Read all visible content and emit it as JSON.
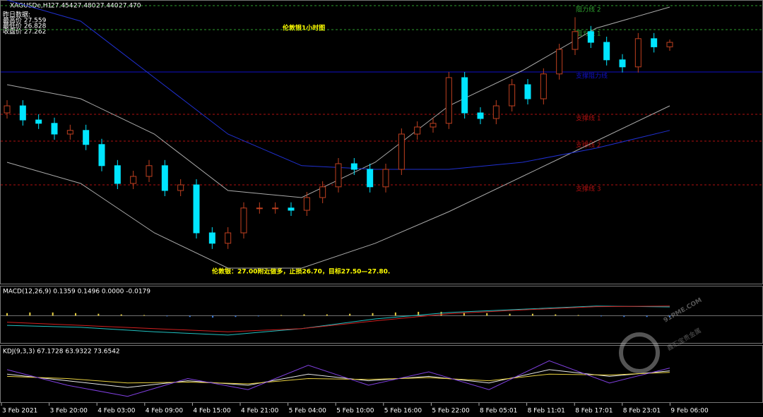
{
  "header": {
    "symbol": "XAGUSDe,H1",
    "ohlc": [
      "27.454",
      "27.480",
      "27.440",
      "27.470"
    ]
  },
  "info": [
    "昨日数据:",
    "最高价 27.559",
    "最低价 26.828",
    "收盘价 27.262"
  ],
  "title": "伦敦银1小时图",
  "annotation": "伦敦银：27.00附近做多，止损26.70，目标27.50—27.80.",
  "main": {
    "ylim": [
      26.62,
      27.62
    ],
    "open": [
      27.22,
      27.245,
      27.195,
      27.183,
      27.145,
      27.158,
      27.108,
      27.033,
      26.97,
      26.995,
      27.033,
      26.945,
      26.965,
      26.795,
      26.758,
      26.795,
      26.883,
      26.883,
      26.883,
      26.875,
      26.92,
      26.958,
      27.04,
      27.02,
      26.958,
      27.02,
      27.145,
      27.17,
      27.183,
      27.345,
      27.22,
      27.2,
      27.245,
      27.32,
      27.27,
      27.358,
      27.445,
      27.508,
      27.47,
      27.408,
      27.383,
      27.483,
      27.454
    ],
    "high": [
      27.265,
      27.265,
      27.215,
      27.203,
      27.178,
      27.178,
      27.128,
      27.053,
      27.015,
      27.053,
      27.053,
      26.985,
      26.985,
      26.815,
      26.815,
      26.903,
      26.903,
      26.903,
      26.903,
      26.94,
      26.978,
      27.06,
      27.06,
      27.04,
      27.04,
      27.165,
      27.19,
      27.203,
      27.365,
      27.365,
      27.24,
      27.265,
      27.34,
      27.34,
      27.378,
      27.465,
      27.559,
      27.528,
      27.49,
      27.428,
      27.503,
      27.503,
      27.48
    ],
    "low": [
      27.2,
      27.175,
      27.163,
      27.125,
      27.125,
      27.088,
      27.013,
      26.95,
      26.95,
      26.975,
      26.925,
      26.925,
      26.775,
      26.738,
      26.738,
      26.775,
      26.863,
      26.863,
      26.855,
      26.855,
      26.9,
      26.938,
      27.0,
      26.938,
      26.938,
      27.0,
      27.125,
      27.15,
      27.163,
      27.2,
      27.18,
      27.18,
      27.225,
      27.25,
      27.25,
      27.338,
      27.425,
      27.45,
      27.388,
      27.363,
      27.363,
      27.434,
      27.44
    ],
    "close": [
      27.245,
      27.195,
      27.183,
      27.145,
      27.158,
      27.108,
      27.033,
      26.97,
      26.995,
      27.033,
      26.945,
      26.965,
      26.795,
      26.758,
      26.795,
      26.883,
      26.883,
      26.883,
      26.875,
      26.92,
      26.958,
      27.04,
      27.02,
      26.958,
      27.02,
      27.145,
      27.17,
      27.183,
      27.345,
      27.22,
      27.2,
      27.245,
      27.32,
      27.27,
      27.358,
      27.445,
      27.508,
      27.47,
      27.408,
      27.383,
      27.483,
      27.454,
      27.47
    ],
    "band_upper": [
      27.32,
      27.27,
      27.145,
      26.945,
      26.92,
      27.045,
      27.245,
      27.37,
      27.52,
      27.595
    ],
    "band_lower": [
      27.045,
      26.97,
      26.795,
      26.67,
      26.67,
      26.758,
      26.87,
      26.995,
      27.12,
      27.245
    ],
    "ma_long": [
      27.62,
      27.545,
      27.345,
      27.145,
      27.033,
      27.02,
      27.02,
      27.045,
      27.095,
      27.158
    ],
    "levels": [
      {
        "label": "阻力线 2",
        "value": 27.6,
        "color": "#2e9e2e"
      },
      {
        "label": "阻力线 1",
        "value": 27.515,
        "color": "#2e9e2e"
      },
      {
        "label": "支撑阻力线",
        "value": 27.365,
        "color": "#1010c8"
      },
      {
        "label": "支撑线 1",
        "value": 27.215,
        "color": "#b01010"
      },
      {
        "label": "支撑线 2",
        "value": 27.12,
        "color": "#b01010"
      },
      {
        "label": "支撑线 3",
        "value": 26.965,
        "color": "#b01010"
      }
    ]
  },
  "macd": {
    "label": "MACD(12,26,9) 0.1359 0.1496 0.0000 -0.0179",
    "ylim": [
      -0.4,
      0.3
    ],
    "hist": [
      0.04,
      0.05,
      0.05,
      0.04,
      0.03,
      0.02,
      0.01,
      -0.01,
      -0.02,
      -0.03,
      -0.02,
      -0.01,
      0.01,
      0.02,
      0.02,
      0.03,
      0.04,
      0.05,
      0.06,
      0.06,
      0.05,
      0.04,
      0.03,
      0.03,
      0.02,
      0.01,
      -0.01,
      -0.02,
      -0.02,
      -0.02
    ],
    "macd": [
      -0.15,
      -0.18,
      -0.25,
      -0.3,
      -0.2,
      -0.05,
      0.05,
      0.1,
      0.15,
      0.136
    ],
    "signal": [
      -0.1,
      -0.15,
      -0.2,
      -0.25,
      -0.2,
      -0.08,
      0.03,
      0.09,
      0.14,
      0.15
    ]
  },
  "kdj": {
    "label": "KDJ(9,3,3) 67.1728 63.9322 73.6542",
    "ylim": [
      0,
      100
    ],
    "k": [
      60,
      45,
      30,
      45,
      35,
      60,
      45,
      55,
      40,
      70,
      55,
      67.17
    ],
    "d": [
      55,
      50,
      40,
      42,
      38,
      50,
      48,
      52,
      45,
      60,
      58,
      63.93
    ],
    "j": [
      70,
      35,
      10,
      50,
      25,
      80,
      35,
      65,
      25,
      90,
      40,
      73.65
    ]
  },
  "x_axis": {
    "labels": [
      "3 Feb 2021",
      "3 Feb 20:00",
      "4 Feb 03:00",
      "4 Feb 09:00",
      "4 Feb 15:00",
      "4 Feb 21:00",
      "5 Feb 04:00",
      "5 Feb 10:00",
      "5 Feb 16:00",
      "5 Feb 22:00",
      "8 Feb 05:01",
      "8 Feb 11:01",
      "8 Feb 17:01",
      "8 Feb 23:01",
      "9 Feb 06:00"
    ]
  },
  "watermark": {
    "site": "91PME.COM",
    "name": "鑫汇宝贵金属"
  }
}
